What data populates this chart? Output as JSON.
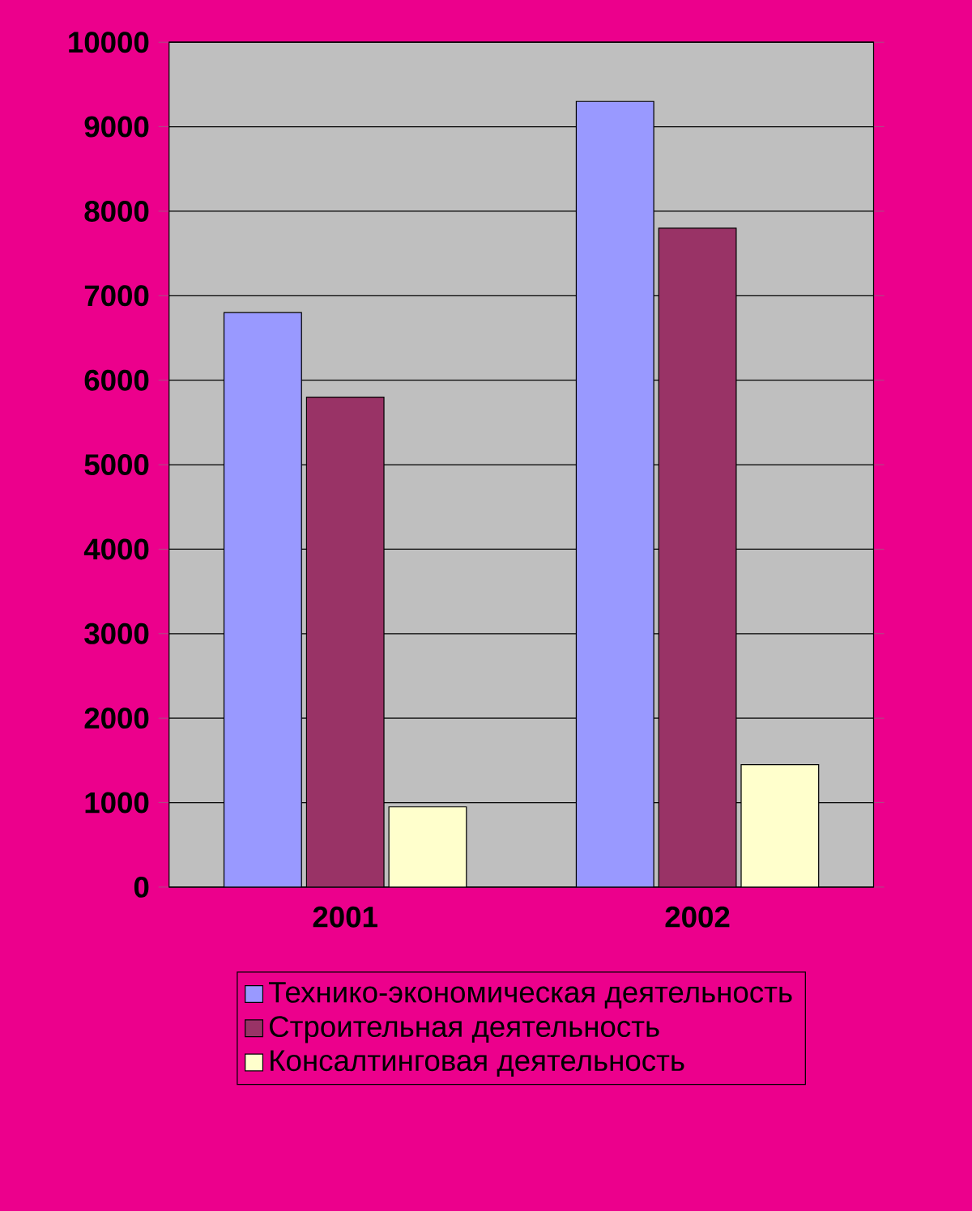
{
  "chart_data": {
    "type": "bar",
    "categories": [
      "2001",
      "2002"
    ],
    "series": [
      {
        "name": "Технико-экономическая деятельность",
        "color": "#9999ff",
        "values": [
          6800,
          9300
        ]
      },
      {
        "name": "Строительная деятельность",
        "color": "#993366",
        "values": [
          5800,
          7800
        ]
      },
      {
        "name": "Консалтинговая деятельность",
        "color": "#ffffcc",
        "values": [
          950,
          1450
        ]
      }
    ],
    "ylim": [
      0,
      10000
    ],
    "yticks": [
      0,
      1000,
      2000,
      3000,
      4000,
      5000,
      6000,
      7000,
      8000,
      9000,
      10000
    ],
    "grid": "y",
    "legend": "bottom"
  }
}
